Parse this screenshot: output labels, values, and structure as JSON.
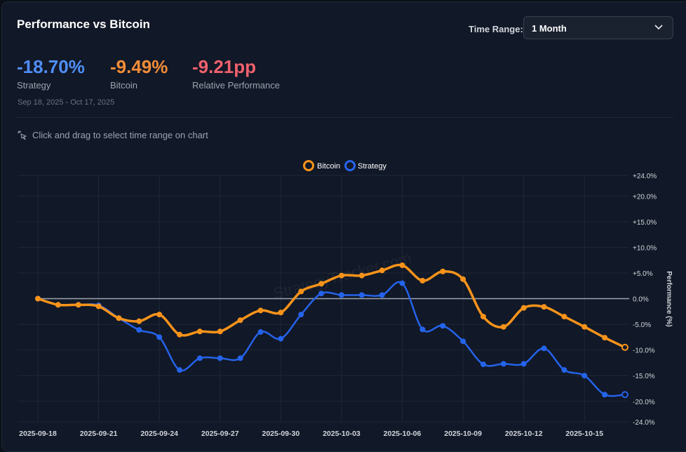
{
  "header": {
    "title": "Performance vs Bitcoin",
    "time_range_label": "Time Range:",
    "time_range_value": "1 Month"
  },
  "stats": [
    {
      "value": "-18.70%",
      "label": "Strategy",
      "color": "#4f8ef7"
    },
    {
      "value": "-9.49%",
      "label": "Bitcoin",
      "color": "#f28c38"
    },
    {
      "value": "-9.21pp",
      "label": "Relative Performance",
      "color": "#f0616d"
    }
  ],
  "date_range": "Sep 18, 2025 - Oct 17, 2025",
  "hint": "Click and drag to select time range on chart",
  "watermark": "StrategyTracker.com",
  "chart_data": {
    "type": "line",
    "ylabel": "Performance (%)",
    "ylim": [
      -24,
      24
    ],
    "yticks": [
      "+24.0%",
      "+20.0%",
      "+15.0%",
      "+10.0%",
      "+5.0%",
      "0.0%",
      "-5.0%",
      "-10.0%",
      "-15.0%",
      "-20.0%",
      "-24.0%"
    ],
    "ytick_values": [
      24,
      20,
      15,
      10,
      5,
      0,
      -5,
      -10,
      -15,
      -20,
      -24
    ],
    "xticks": [
      "2025-09-18",
      "2025-09-21",
      "2025-09-24",
      "2025-09-27",
      "2025-09-30",
      "2025-10-03",
      "2025-10-06",
      "2025-10-09",
      "2025-10-12",
      "2025-10-15"
    ],
    "xtick_indices": [
      0,
      3,
      6,
      9,
      12,
      15,
      18,
      21,
      24,
      27
    ],
    "legend_position": "top-center",
    "grid": true,
    "series": [
      {
        "name": "Bitcoin",
        "color": "#f7931a",
        "values": [
          0,
          -1.2,
          -1.2,
          -1.5,
          -3.8,
          -4.4,
          -3.1,
          -7.0,
          -6.4,
          -6.4,
          -4.2,
          -2.3,
          -2.7,
          1.4,
          2.9,
          4.5,
          4.5,
          5.5,
          6.5,
          3.5,
          5.3,
          3.8,
          -3.5,
          -5.5,
          -1.8,
          -1.6,
          -3.5,
          -5.5,
          -7.6,
          -9.49
        ]
      },
      {
        "name": "Strategy",
        "color": "#2563eb",
        "values": [
          0,
          -1.2,
          -1.2,
          -1.3,
          -3.8,
          -6.1,
          -7.5,
          -13.9,
          -11.6,
          -11.6,
          -11.6,
          -6.5,
          -7.8,
          -3.1,
          1.0,
          0.7,
          0.7,
          0.7,
          3.0,
          -6.0,
          -5.3,
          -8.3,
          -12.8,
          -12.7,
          -12.7,
          -9.7,
          -13.9,
          -15.0,
          -18.7,
          -18.7
        ]
      }
    ]
  }
}
